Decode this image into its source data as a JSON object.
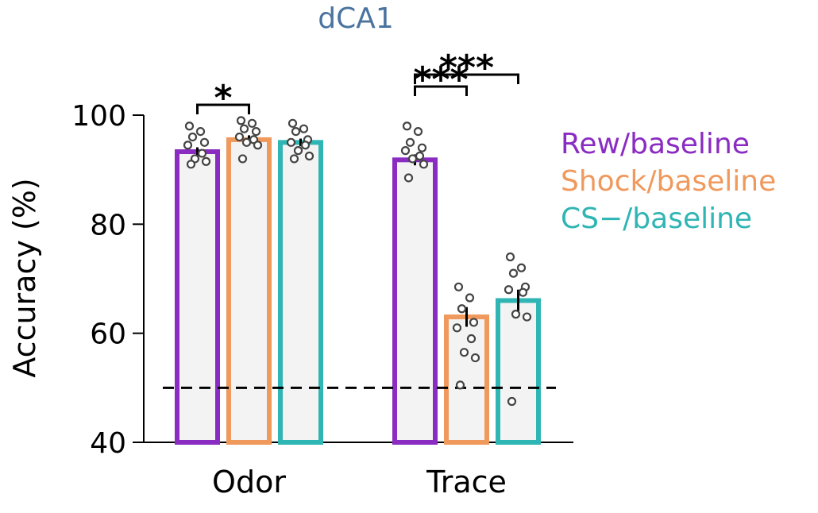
{
  "chart_data": {
    "type": "bar",
    "title": "dCA1",
    "title_color": "#4a73a0",
    "ylabel": "Accuracy (%)",
    "ylim": [
      40,
      100
    ],
    "yticks": [
      "40",
      "60",
      "80",
      "100"
    ],
    "categories": [
      "Odor",
      "Trace"
    ],
    "chance_level": 50,
    "legend_position": "right",
    "series": [
      {
        "name": "Rew/baseline",
        "color": "#8a2bc2",
        "values": [
          93.3,
          91.8
        ],
        "sem": [
          0.8,
          1.0
        ],
        "points": [
          [
            98.0,
            97.0,
            96.0,
            95.0,
            94.5,
            93.0,
            92.0,
            91.5,
            91.0
          ],
          [
            98.0,
            97.0,
            95.0,
            94.0,
            93.5,
            92.5,
            92.0,
            91.0,
            88.5
          ]
        ]
      },
      {
        "name": "Shock/baseline",
        "color": "#f0995c",
        "values": [
          95.5,
          63.0
        ],
        "sem": [
          0.8,
          1.8
        ],
        "points": [
          [
            99.0,
            98.5,
            97.5,
            97.0,
            96.0,
            95.5,
            95.0,
            94.5,
            92.0
          ],
          [
            68.5,
            66.5,
            64.5,
            62.0,
            61.0,
            59.0,
            56.5,
            55.5,
            50.5
          ]
        ]
      },
      {
        "name": "CS−/baseline",
        "color": "#2fb5b3",
        "values": [
          95.0,
          66.0
        ],
        "sem": [
          0.7,
          2.0
        ],
        "points": [
          [
            98.5,
            97.5,
            97.0,
            95.5,
            95.0,
            94.5,
            93.5,
            92.5,
            92.0
          ],
          [
            74.0,
            72.0,
            71.0,
            68.5,
            68.0,
            67.5,
            63.5,
            63.0,
            47.5
          ]
        ]
      }
    ],
    "significance": [
      {
        "category": 0,
        "from_series": 0,
        "to_series": 1,
        "label": "*"
      },
      {
        "category": 1,
        "from_series": 0,
        "to_series": 1,
        "label": "***"
      },
      {
        "category": 1,
        "from_series": 0,
        "to_series": 2,
        "label": "***"
      }
    ]
  }
}
